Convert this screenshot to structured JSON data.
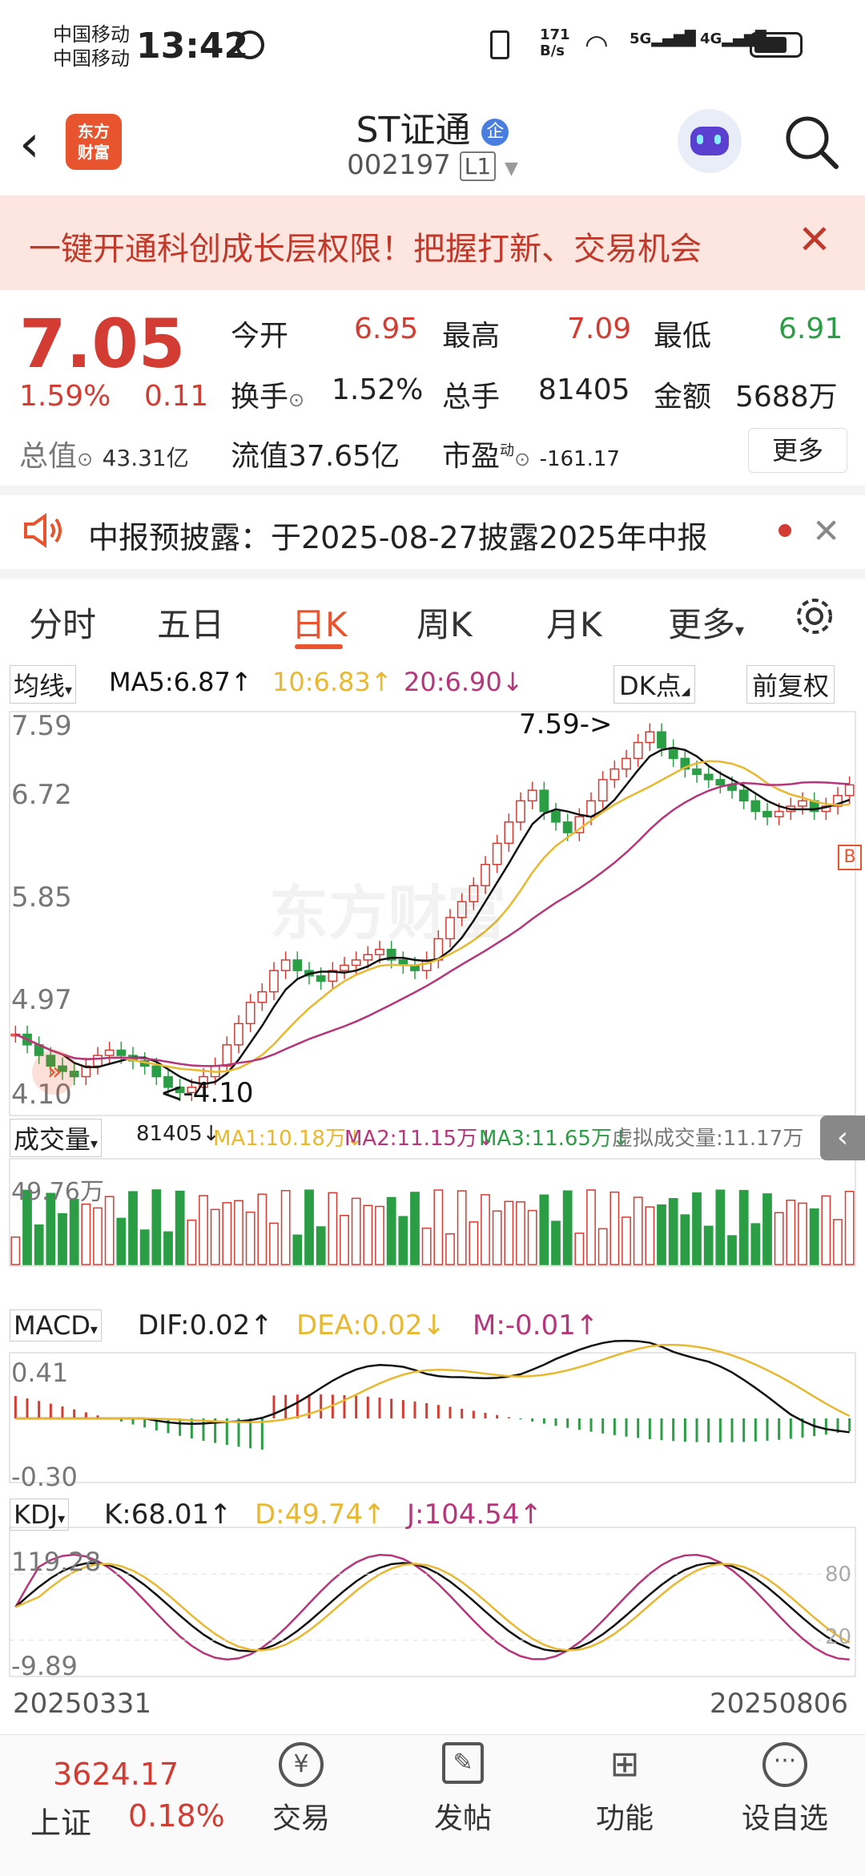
{
  "status": {
    "carrier1": "中国移动",
    "carrier2": "中国移动",
    "time": "13:42",
    "net_speed": "171 B/s"
  },
  "header": {
    "logo_text1": "东方",
    "logo_text2": "财富",
    "stock_name": "ST证通",
    "stock_code": "002197",
    "level": "L1"
  },
  "banner": {
    "text": "一键开通科创成长层权限！把握打新、交易机会"
  },
  "quote": {
    "price": "7.05",
    "change_pct": "1.59%",
    "change": "0.11",
    "open_label": "今开",
    "open": "6.95",
    "high_label": "最高",
    "high": "7.09",
    "low_label": "最低",
    "low": "6.91",
    "turnover_label": "换手",
    "turnover": "1.52%",
    "volume_label": "总手",
    "volume": "81405",
    "amount_label": "金额",
    "amount": "5688万",
    "mktcap_label": "总值",
    "mktcap": "43.31亿",
    "float_label": "流值",
    "float": "37.65亿",
    "pe_label": "市盈",
    "pe_sup": "动",
    "pe": "-161.17",
    "more": "更多"
  },
  "notice": {
    "text": "中报预披露：于2025-08-27披露2025年中报"
  },
  "tabs": [
    "分时",
    "五日",
    "日K",
    "周K",
    "月K",
    "更多"
  ],
  "active_tab": "日K",
  "kline": {
    "ma_selector": "均线",
    "ma5": "MA5:6.87↑",
    "ma10": "10:6.83↑",
    "ma20": "20:6.90↓",
    "dk": "DK点",
    "adjust": "前复权",
    "y_labels": [
      "7.59",
      "6.72",
      "5.85",
      "4.97",
      "4.10"
    ],
    "high_marker": "7.59->",
    "low_marker": "<-4.10",
    "watermark": "东方财富",
    "b_marker": "B"
  },
  "volume": {
    "selector": "成交量",
    "value": "81405↓",
    "ma1": "MA1:10.18万↓",
    "ma2": "MA2:11.15万↓",
    "ma3": "MA3:11.65万↓",
    "virtual": "虚拟成交量:11.17万",
    "y_label": "49.76万"
  },
  "macd": {
    "selector": "MACD",
    "dif": "DIF:0.02↑",
    "dea": "DEA:0.02↓",
    "m": "M:-0.01↑",
    "y_top": "0.41",
    "y_bottom": "-0.30"
  },
  "kdj": {
    "selector": "KDJ",
    "k": "K:68.01↑",
    "d": "D:49.74↑",
    "j": "J:104.54↑",
    "y_top": "119.28",
    "y_bottom": "-9.89",
    "level80": "80",
    "level20": "20"
  },
  "dates": {
    "start": "20250331",
    "end": "20250806"
  },
  "bottom_nav": {
    "index_value": "3624.17",
    "index_name": "上证",
    "index_change": "0.18%",
    "items": [
      "交易",
      "发帖",
      "功能",
      "设自选"
    ]
  },
  "colors": {
    "up": "#d23c33",
    "down": "#2b9e45",
    "ma5": "#111111",
    "ma10": "#e8b830",
    "ma20": "#b5367a"
  },
  "chart_data": {
    "type": "candlestick",
    "x_start": "20250331",
    "x_end": "20250806",
    "ylim": [
      4.1,
      7.59
    ],
    "close_approx": [
      4.7,
      4.6,
      4.5,
      4.4,
      4.35,
      4.3,
      4.4,
      4.5,
      4.55,
      4.5,
      4.45,
      4.4,
      4.3,
      4.2,
      4.15,
      4.2,
      4.3,
      4.4,
      4.6,
      4.8,
      5.0,
      5.1,
      5.3,
      5.4,
      5.3,
      5.25,
      5.2,
      5.3,
      5.35,
      5.4,
      5.45,
      5.5,
      5.4,
      5.35,
      5.3,
      5.4,
      5.6,
      5.8,
      5.95,
      6.1,
      6.3,
      6.5,
      6.7,
      6.9,
      7.0,
      6.8,
      6.7,
      6.6,
      6.75,
      6.9,
      7.1,
      7.2,
      7.3,
      7.45,
      7.55,
      7.4,
      7.3,
      7.2,
      7.15,
      7.1,
      7.05,
      7.0,
      6.9,
      6.8,
      6.75,
      6.8,
      6.85,
      6.9,
      6.8,
      6.85,
      6.95,
      7.05
    ]
  }
}
